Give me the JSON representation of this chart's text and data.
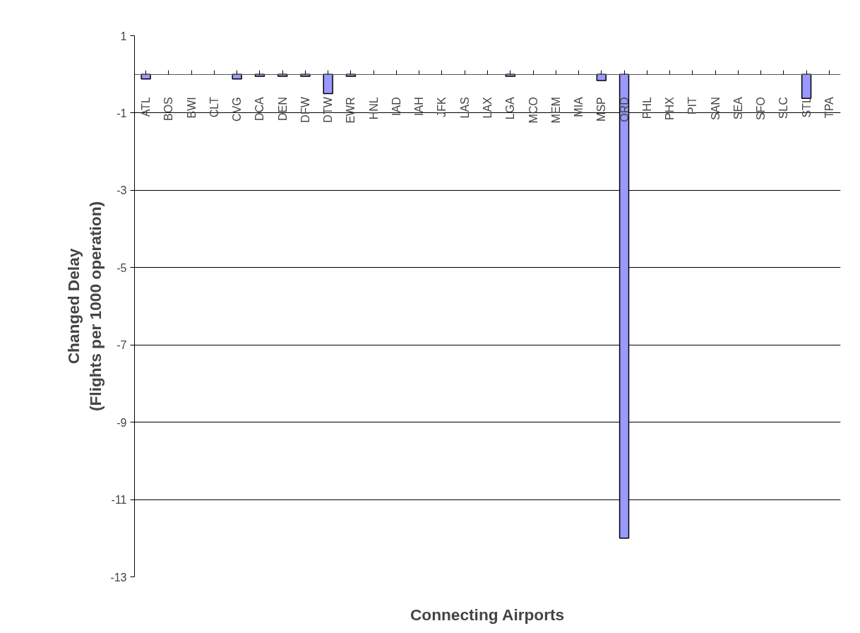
{
  "chart_data": {
    "type": "bar",
    "xlabel": "Connecting Airports",
    "ylabel": "Changed Delay\n(Flights per 1000 operation)",
    "categories": [
      "ATL",
      "BOS",
      "BWI",
      "CLT",
      "CVG",
      "DCA",
      "DEN",
      "DFW",
      "DTW",
      "EWR",
      "HNL",
      "IAD",
      "IAH",
      "JFK",
      "LAS",
      "LAX",
      "LGA",
      "MCO",
      "MEM",
      "MIA",
      "MSP",
      "ORD",
      "PHL",
      "PHX",
      "PIT",
      "SAN",
      "SEA",
      "SFO",
      "SLC",
      "STL",
      "TPA"
    ],
    "values": [
      -0.12,
      0,
      0,
      0,
      -0.12,
      -0.05,
      -0.05,
      -0.05,
      -0.5,
      -0.05,
      0,
      0,
      0,
      0,
      0,
      0,
      -0.05,
      0,
      0,
      0,
      -0.16,
      -12,
      0,
      0,
      0,
      0,
      0,
      0,
      0,
      -0.62,
      0
    ],
    "color": "#9999ff",
    "ylim": [
      -13,
      1
    ],
    "yticks": [
      -13,
      -11,
      -9,
      -7,
      -5,
      -3,
      -1,
      1
    ],
    "grid": "y"
  }
}
